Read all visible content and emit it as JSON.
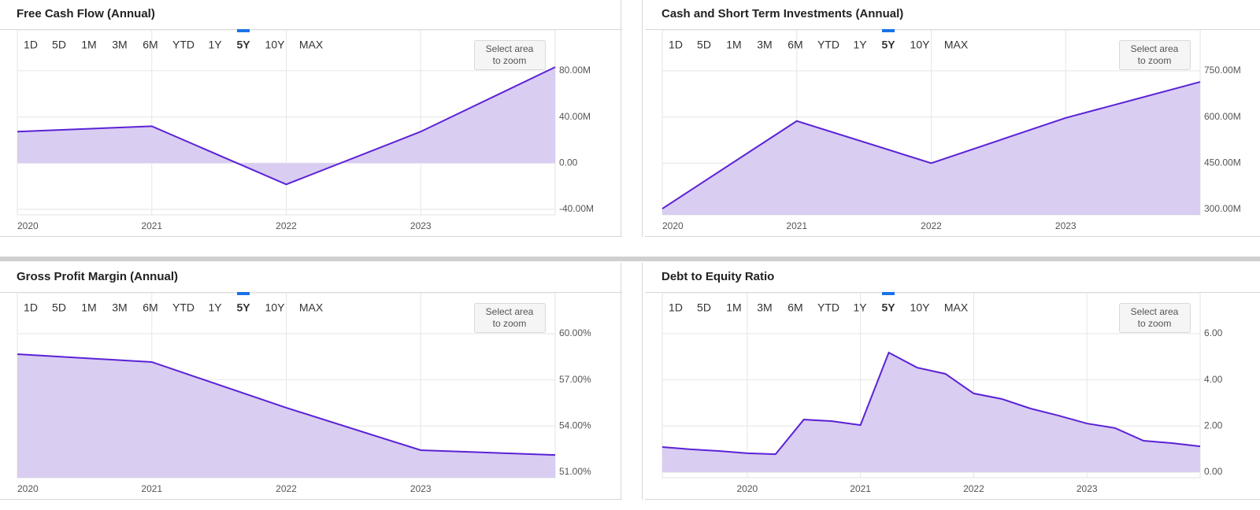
{
  "range_buttons": [
    "1D",
    "5D",
    "1M",
    "3M",
    "6M",
    "YTD",
    "1Y",
    "5Y",
    "10Y",
    "MAX"
  ],
  "active_range": "5Y",
  "zoom_hint_lines": [
    "Select area",
    "to zoom"
  ],
  "chart_data": [
    {
      "type": "area",
      "title": "Free Cash Flow (Annual)",
      "x": [
        2020,
        2021,
        2022,
        2023,
        2024
      ],
      "values": [
        27.3,
        32,
        -18.4,
        27.3,
        83.2
      ],
      "xlim": [
        2020,
        2024
      ],
      "xticks": [
        2020,
        2021,
        2022,
        2023
      ],
      "ylim": [
        -44.8,
        115.4
      ],
      "yticks": [
        {
          "value": -40,
          "label": "-40.00M"
        },
        {
          "value": 0,
          "label": "0.00"
        },
        {
          "value": 40,
          "label": "40.00M"
        },
        {
          "value": 80,
          "label": "80.00M"
        }
      ],
      "color": "#5b22d6",
      "fill_color": "#d9cdf2",
      "grid": true
    },
    {
      "type": "area",
      "title": "Cash and Short Term Investments (Annual)",
      "x": [
        2020,
        2021,
        2022,
        2023,
        2024
      ],
      "values": [
        302,
        587,
        450,
        597,
        714
      ],
      "xlim": [
        2020,
        2024
      ],
      "xticks": [
        2020,
        2021,
        2022,
        2023
      ],
      "ylim": [
        282,
        883
      ],
      "yticks": [
        {
          "value": 300,
          "label": "300.00M"
        },
        {
          "value": 450,
          "label": "450.00M"
        },
        {
          "value": 600,
          "label": "600.00M"
        },
        {
          "value": 750,
          "label": "750.00M"
        }
      ],
      "color": "#5b22d6",
      "fill_color": "#d9cdf2",
      "grid": true
    },
    {
      "type": "area",
      "title": "Gross Profit Margin (Annual)",
      "x": [
        2020,
        2021,
        2022,
        2023,
        2024
      ],
      "values": [
        58.67,
        58.16,
        55.19,
        52.43,
        52.12
      ],
      "xlim": [
        2020,
        2024
      ],
      "xticks": [
        2020,
        2021,
        2022,
        2023
      ],
      "ylim": [
        50.64,
        62.66
      ],
      "yticks": [
        {
          "value": 51,
          "label": "51.00%"
        },
        {
          "value": 54,
          "label": "54.00%"
        },
        {
          "value": 57,
          "label": "57.00%"
        },
        {
          "value": 60,
          "label": "60.00%"
        }
      ],
      "color": "#5b22d6",
      "fill_color": "#d9cdf2",
      "grid": true
    },
    {
      "type": "area",
      "title": "Debt to Equity Ratio",
      "x": [
        2019.25,
        2019.5,
        2019.75,
        2020,
        2020.25,
        2020.5,
        2020.75,
        2021,
        2021.25,
        2021.5,
        2021.75,
        2022,
        2022.25,
        2022.5,
        2022.75,
        2023,
        2023.25,
        2023.5,
        2023.75,
        2024
      ],
      "values": [
        1.09,
        0.99,
        0.92,
        0.82,
        0.78,
        2.28,
        2.21,
        2.04,
        5.18,
        4.53,
        4.26,
        3.41,
        3.17,
        2.76,
        2.45,
        2.11,
        1.91,
        1.36,
        1.26,
        1.12
      ],
      "xlim": [
        2019.25,
        2024
      ],
      "xticks": [
        2020,
        2021,
        2022,
        2023
      ],
      "ylim": [
        -0.24,
        7.77
      ],
      "yticks": [
        {
          "value": 0,
          "label": "0.00"
        },
        {
          "value": 2,
          "label": "2.00"
        },
        {
          "value": 4,
          "label": "4.00"
        },
        {
          "value": 6,
          "label": "6.00"
        }
      ],
      "color": "#5b22d6",
      "fill_color": "#d9cdf2",
      "grid": true
    }
  ]
}
